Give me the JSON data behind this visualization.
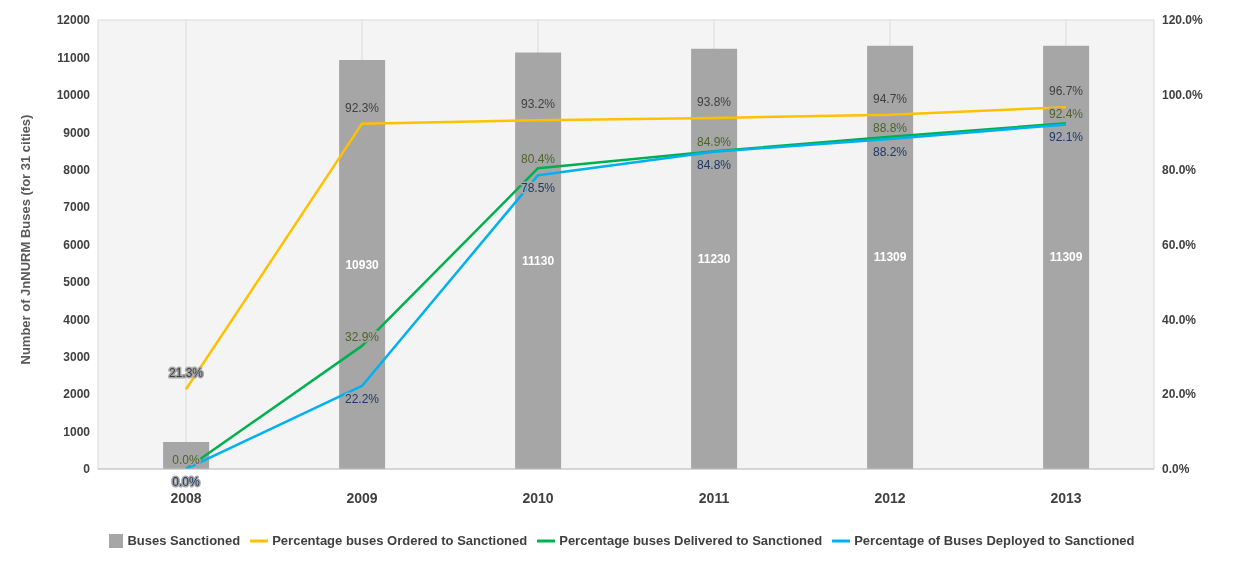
{
  "chart_data": {
    "type": "bar",
    "ylabel": "Number of JnNURM Buses  (for 31 cities)",
    "categories": [
      "2008",
      "2009",
      "2010",
      "2011",
      "2012",
      "2013"
    ],
    "series": [
      {
        "name": "Buses Sanctioned",
        "color": "#a6a6a6",
        "values": [
          720,
          10930,
          11130,
          11230,
          11309,
          11309
        ],
        "value_labels": [
          null,
          "10930",
          "11130",
          "11230",
          "11309",
          "11309"
        ]
      },
      {
        "name": "Percentage buses Ordered to Sanctioned",
        "type": "line",
        "axis": "y2",
        "color": "#ffc000",
        "values": [
          21.3,
          92.3,
          93.2,
          93.8,
          94.7,
          96.7
        ],
        "value_labels": [
          "21.3%",
          "92.3%",
          "93.2%",
          "93.8%",
          "94.7%",
          "96.7%"
        ]
      },
      {
        "name": "Percentage buses Delivered to Sanctioned",
        "type": "line",
        "axis": "y2",
        "color": "#00b050",
        "values": [
          0.0,
          32.9,
          80.4,
          84.9,
          88.8,
          92.4
        ],
        "value_labels": [
          "0.0%",
          "32.9%",
          "80.4%",
          "84.9%",
          "88.8%",
          "92.4%"
        ]
      },
      {
        "name": "Percentage of Buses Deployed to Sanctioned",
        "type": "line",
        "axis": "y2",
        "color": "#00b0f0",
        "values": [
          0.0,
          22.2,
          78.5,
          84.8,
          88.2,
          92.1
        ],
        "value_labels": [
          "0.0%",
          "22.2%",
          "78.5%",
          "84.8%",
          "88.2%",
          "92.1%"
        ]
      }
    ],
    "ylim": [
      0,
      12000
    ],
    "yticks": [
      0,
      1000,
      2000,
      3000,
      4000,
      5000,
      6000,
      7000,
      8000,
      9000,
      10000,
      11000,
      12000
    ],
    "y2lim": [
      0,
      120
    ],
    "y2ticks": [
      {
        "value": 0,
        "label": "0.0%"
      },
      {
        "value": 20,
        "label": "20.0%"
      },
      {
        "value": 40,
        "label": "40.0%"
      },
      {
        "value": 60,
        "label": "60.0%"
      },
      {
        "value": 80,
        "label": "80.0%"
      },
      {
        "value": 100,
        "label": "100.0%"
      },
      {
        "value": 120,
        "label": "120.0%"
      }
    ],
    "grid": true,
    "legend": "bottom",
    "marker": "none",
    "line_style": "solid"
  }
}
